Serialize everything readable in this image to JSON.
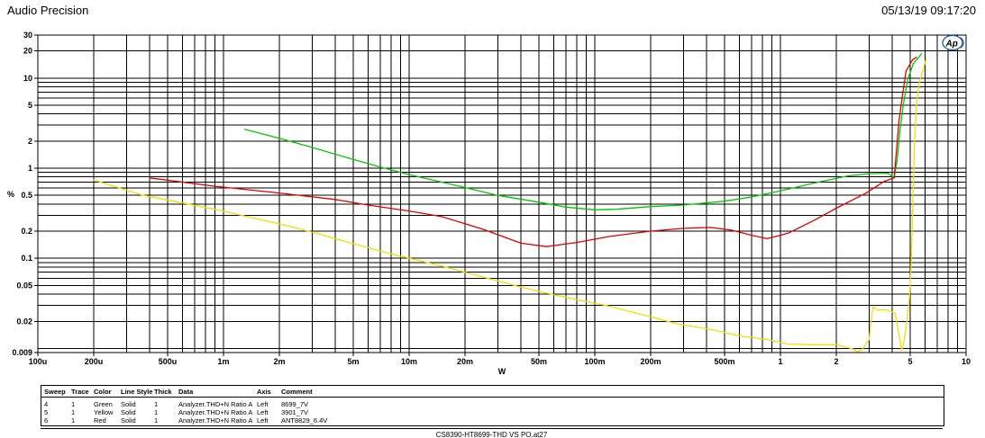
{
  "header": {
    "title": "Audio Precision",
    "datetime": "05/13/19 09:17:20"
  },
  "logo": {
    "text": "Ap"
  },
  "chart_data": {
    "type": "line",
    "title": "",
    "xlabel": "W",
    "ylabel": "%",
    "grid": "full-log",
    "legend_position": "bottom-table",
    "x_axis": {
      "scale": "log",
      "min": 0.0001,
      "max": 10,
      "tick_labels": [
        "100u",
        "200u",
        "500u",
        "1m",
        "2m",
        "5m",
        "10m",
        "20m",
        "50m",
        "100m",
        "200m",
        "500m",
        "1",
        "2",
        "5",
        "10"
      ],
      "tick_values": [
        0.0001,
        0.0002,
        0.0005,
        0.001,
        0.002,
        0.005,
        0.01,
        0.02,
        0.05,
        0.1,
        0.2,
        0.5,
        1,
        2,
        5,
        10
      ]
    },
    "y_axis": {
      "scale": "log",
      "min": 0.009,
      "max": 30,
      "tick_labels": [
        "30",
        "20",
        "10",
        "5",
        "2",
        "1",
        "0.5",
        "0.2",
        "0.1",
        "0.05",
        "0.02",
        "0.009"
      ],
      "tick_values": [
        30,
        20,
        10,
        5,
        2,
        1,
        0.5,
        0.2,
        0.1,
        0.05,
        0.02,
        0.009
      ]
    },
    "series": [
      {
        "name": "8699_7V",
        "color": "#00C800",
        "line_style": "Solid",
        "points": [
          [
            0.0013,
            2.7
          ],
          [
            0.002,
            2.15
          ],
          [
            0.003,
            1.7
          ],
          [
            0.005,
            1.25
          ],
          [
            0.007,
            1.03
          ],
          [
            0.01,
            0.85
          ],
          [
            0.015,
            0.7
          ],
          [
            0.02,
            0.61
          ],
          [
            0.03,
            0.5
          ],
          [
            0.05,
            0.42
          ],
          [
            0.07,
            0.37
          ],
          [
            0.1,
            0.345
          ],
          [
            0.13,
            0.35
          ],
          [
            0.2,
            0.375
          ],
          [
            0.3,
            0.39
          ],
          [
            0.5,
            0.43
          ],
          [
            0.7,
            0.48
          ],
          [
            1.0,
            0.56
          ],
          [
            1.5,
            0.68
          ],
          [
            2.3,
            0.82
          ],
          [
            3.0,
            0.87
          ],
          [
            3.8,
            0.88
          ],
          [
            4.1,
            0.78
          ],
          [
            4.25,
            1.2
          ],
          [
            4.4,
            2.6
          ],
          [
            4.6,
            5.2
          ],
          [
            4.85,
            9.7
          ],
          [
            5.2,
            14.5
          ],
          [
            5.75,
            18.5
          ]
        ]
      },
      {
        "name": "3901_7V",
        "color": "#F2DE00",
        "line_style": "Solid",
        "points": [
          [
            0.0002,
            0.74
          ],
          [
            0.00037,
            0.5
          ],
          [
            0.0009,
            0.35
          ],
          [
            0.0023,
            0.225
          ],
          [
            0.0033,
            0.185
          ],
          [
            0.005,
            0.145
          ],
          [
            0.008,
            0.112
          ],
          [
            0.015,
            0.082
          ],
          [
            0.025,
            0.062
          ],
          [
            0.04,
            0.048
          ],
          [
            0.065,
            0.038
          ],
          [
            0.115,
            0.03
          ],
          [
            0.2,
            0.0225
          ],
          [
            0.27,
            0.019
          ],
          [
            0.44,
            0.016
          ],
          [
            0.6,
            0.0138
          ],
          [
            0.86,
            0.0125
          ],
          [
            1.1,
            0.0112
          ],
          [
            1.5,
            0.011
          ],
          [
            2.0,
            0.011
          ],
          [
            2.45,
            0.0099
          ],
          [
            2.6,
            0.0092
          ],
          [
            2.75,
            0.0097
          ],
          [
            3.0,
            0.0125
          ],
          [
            3.15,
            0.029
          ],
          [
            3.35,
            0.0265
          ],
          [
            3.6,
            0.027
          ],
          [
            3.9,
            0.026
          ],
          [
            4.15,
            0.0245
          ],
          [
            4.4,
            0.0125
          ],
          [
            4.5,
            0.0095
          ],
          [
            4.65,
            0.0125
          ],
          [
            4.8,
            0.02
          ],
          [
            4.95,
            0.035
          ],
          [
            5.05,
            0.08
          ],
          [
            5.15,
            0.3
          ],
          [
            5.25,
            1.5
          ],
          [
            5.4,
            5
          ],
          [
            5.6,
            9
          ],
          [
            5.85,
            12
          ],
          [
            6.1,
            16.5
          ]
        ]
      },
      {
        "name": "ANT8829_6.4V",
        "color": "#E00000",
        "line_style": "Solid",
        "points": [
          [
            0.0004,
            0.78
          ],
          [
            0.0009,
            0.63
          ],
          [
            0.002,
            0.53
          ],
          [
            0.004,
            0.45
          ],
          [
            0.006,
            0.39
          ],
          [
            0.01,
            0.335
          ],
          [
            0.015,
            0.29
          ],
          [
            0.025,
            0.21
          ],
          [
            0.04,
            0.147
          ],
          [
            0.055,
            0.135
          ],
          [
            0.08,
            0.15
          ],
          [
            0.12,
            0.175
          ],
          [
            0.2,
            0.2
          ],
          [
            0.3,
            0.215
          ],
          [
            0.42,
            0.22
          ],
          [
            0.55,
            0.205
          ],
          [
            0.7,
            0.18
          ],
          [
            0.85,
            0.165
          ],
          [
            1.1,
            0.19
          ],
          [
            1.5,
            0.26
          ],
          [
            2.0,
            0.36
          ],
          [
            2.9,
            0.53
          ],
          [
            3.6,
            0.71
          ],
          [
            4.1,
            0.78
          ],
          [
            4.35,
            3.3
          ],
          [
            4.5,
            5.6
          ],
          [
            4.75,
            12
          ],
          [
            5.15,
            16
          ],
          [
            5.4,
            17
          ]
        ]
      }
    ]
  },
  "legend": {
    "columns": [
      "Sweep",
      "Trace",
      "Color",
      "Line Style",
      "Thick",
      "Data",
      "Axis",
      "Comment"
    ],
    "rows": [
      [
        "4",
        "1",
        "Green",
        "Solid",
        "1",
        "Analyzer.THD+N Ratio A",
        "Left",
        "8699_7V"
      ],
      [
        "5",
        "1",
        "Yellow",
        "Solid",
        "1",
        "Analyzer.THD+N Ratio A",
        "Left",
        "3901_7V"
      ],
      [
        "6",
        "1",
        "Red",
        "Solid",
        "1",
        "Analyzer.THD+N Ratio A",
        "Left",
        "ANT8829_6.4V"
      ]
    ]
  },
  "footer": {
    "text": "CS8390-HT8699-THD VS PO.at27"
  }
}
